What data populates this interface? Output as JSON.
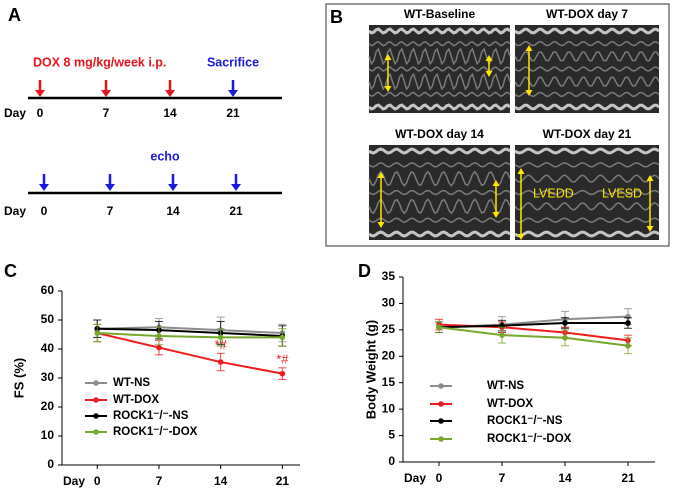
{
  "panel_labels": [
    "A",
    "B",
    "C",
    "D"
  ],
  "timeline": {
    "top": {
      "label": "DOX 8 mg/kg/week i.p.",
      "end_label": "Sacrifice",
      "day_label": "Day",
      "days": [
        "0",
        "7",
        "14",
        "21"
      ]
    },
    "bottom": {
      "label": "echo",
      "day_label": "Day",
      "days": [
        "0",
        "7",
        "14",
        "21"
      ]
    }
  },
  "echo_images": {
    "titles": [
      "WT-Baseline",
      "WT-DOX day 7",
      "WT-DOX day 14",
      "WT-DOX day 21"
    ],
    "measures": [
      "LVEDD",
      "LVESD"
    ]
  },
  "chart_data": [
    {
      "type": "line",
      "ylabel": "FS (%)",
      "xlabel": "Day",
      "x": [
        0,
        7,
        14,
        21
      ],
      "xlim": [
        -4,
        23
      ],
      "xticks": [
        0,
        7,
        14,
        21
      ],
      "ylim": [
        0,
        60
      ],
      "yticks": [
        0,
        10,
        20,
        30,
        40,
        50,
        60
      ],
      "grid": false,
      "legend": "lower left",
      "series": [
        {
          "name": "WT-NS",
          "color": "#8c8c8c",
          "values": [
            47,
            47.5,
            46.5,
            45.5
          ],
          "errors": [
            3,
            3,
            4.5,
            3
          ]
        },
        {
          "name": "WT-DOX",
          "color": "#ee1c1c",
          "values": [
            45.5,
            40.5,
            35.5,
            31.5
          ],
          "errors": [
            3,
            2.5,
            3,
            2
          ],
          "point_labels": [
            null,
            null,
            "*#",
            "*#"
          ]
        },
        {
          "name": "ROCK1⁻/⁻-NS",
          "color": "#000000",
          "values": [
            47,
            46.5,
            45.5,
            44.5
          ],
          "errors": [
            3,
            3,
            4,
            3.5
          ]
        },
        {
          "name": "ROCK1⁻/⁻-DOX",
          "color": "#77a82c",
          "values": [
            45.5,
            44.5,
            44,
            44
          ],
          "errors": [
            3,
            3,
            3,
            3
          ]
        }
      ]
    },
    {
      "type": "line",
      "ylabel": "Body Weight (g)",
      "xlabel": "Day",
      "x": [
        0,
        7,
        14,
        21
      ],
      "xlim": [
        -4,
        24
      ],
      "xticks": [
        0,
        7,
        14,
        21
      ],
      "ylim": [
        0,
        35
      ],
      "yticks": [
        0,
        5,
        10,
        15,
        20,
        25,
        30,
        35
      ],
      "grid": false,
      "legend": "lower left",
      "series": [
        {
          "name": "WT-NS",
          "color": "#8c8c8c",
          "values": [
            25.5,
            26,
            27,
            27.5
          ],
          "errors": [
            1,
            1.5,
            1.5,
            1.5
          ]
        },
        {
          "name": "WT-DOX",
          "color": "#ee1c1c",
          "values": [
            26,
            25.5,
            24.5,
            23
          ],
          "errors": [
            1,
            1,
            1,
            1
          ],
          "point_labels": [
            null,
            null,
            null,
            "*"
          ]
        },
        {
          "name": "ROCK1⁻/⁻-NS",
          "color": "#000000",
          "values": [
            25.5,
            25.8,
            26.3,
            26.3
          ],
          "errors": [
            1,
            1,
            1,
            1
          ]
        },
        {
          "name": "ROCK1⁻/⁻-DOX",
          "color": "#77a82c",
          "values": [
            25.5,
            24,
            23.5,
            22
          ],
          "errors": [
            1,
            1.5,
            1.5,
            1.5
          ]
        }
      ]
    }
  ]
}
